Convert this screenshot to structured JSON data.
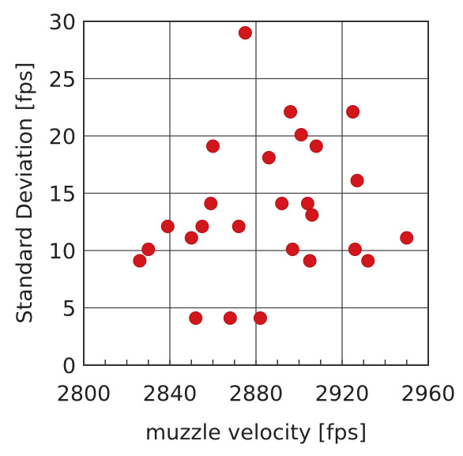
{
  "chart_data": {
    "type": "scatter",
    "title": "",
    "xlabel": "muzzle velocity [fps]",
    "ylabel": "Standard Deviation [fps]",
    "xlim": [
      2800,
      2960
    ],
    "ylim": [
      0,
      30
    ],
    "x_ticks": [
      2800,
      2840,
      2880,
      2920,
      2960
    ],
    "y_ticks": [
      0,
      5,
      10,
      15,
      20,
      25,
      30
    ],
    "x_tick_labels": [
      "2800",
      "2840",
      "2880",
      "2920",
      "2960"
    ],
    "y_tick_labels": [
      "0",
      "5",
      "10",
      "15",
      "20",
      "25",
      "30"
    ],
    "grid": true,
    "marker_color": "#d3161c",
    "series": [
      {
        "points": [
          {
            "x": 2875,
            "y": 29
          },
          {
            "x": 2826,
            "y": 9.1
          },
          {
            "x": 2830,
            "y": 10.1
          },
          {
            "x": 2839,
            "y": 12.1
          },
          {
            "x": 2850,
            "y": 11.1
          },
          {
            "x": 2855,
            "y": 12.1
          },
          {
            "x": 2852,
            "y": 4.1
          },
          {
            "x": 2859,
            "y": 14.1
          },
          {
            "x": 2860,
            "y": 19.1
          },
          {
            "x": 2868,
            "y": 4.1
          },
          {
            "x": 2872,
            "y": 12.1
          },
          {
            "x": 2882,
            "y": 4.1
          },
          {
            "x": 2886,
            "y": 18.1
          },
          {
            "x": 2892,
            "y": 14.1
          },
          {
            "x": 2896,
            "y": 22.1
          },
          {
            "x": 2897,
            "y": 10.1
          },
          {
            "x": 2901,
            "y": 20.1
          },
          {
            "x": 2904,
            "y": 14.1
          },
          {
            "x": 2905,
            "y": 9.1
          },
          {
            "x": 2906,
            "y": 13.1
          },
          {
            "x": 2908,
            "y": 19.1
          },
          {
            "x": 2925,
            "y": 22.1
          },
          {
            "x": 2926,
            "y": 10.1
          },
          {
            "x": 2927,
            "y": 16.1
          },
          {
            "x": 2932,
            "y": 9.1
          },
          {
            "x": 2950,
            "y": 11.1
          }
        ]
      }
    ]
  }
}
